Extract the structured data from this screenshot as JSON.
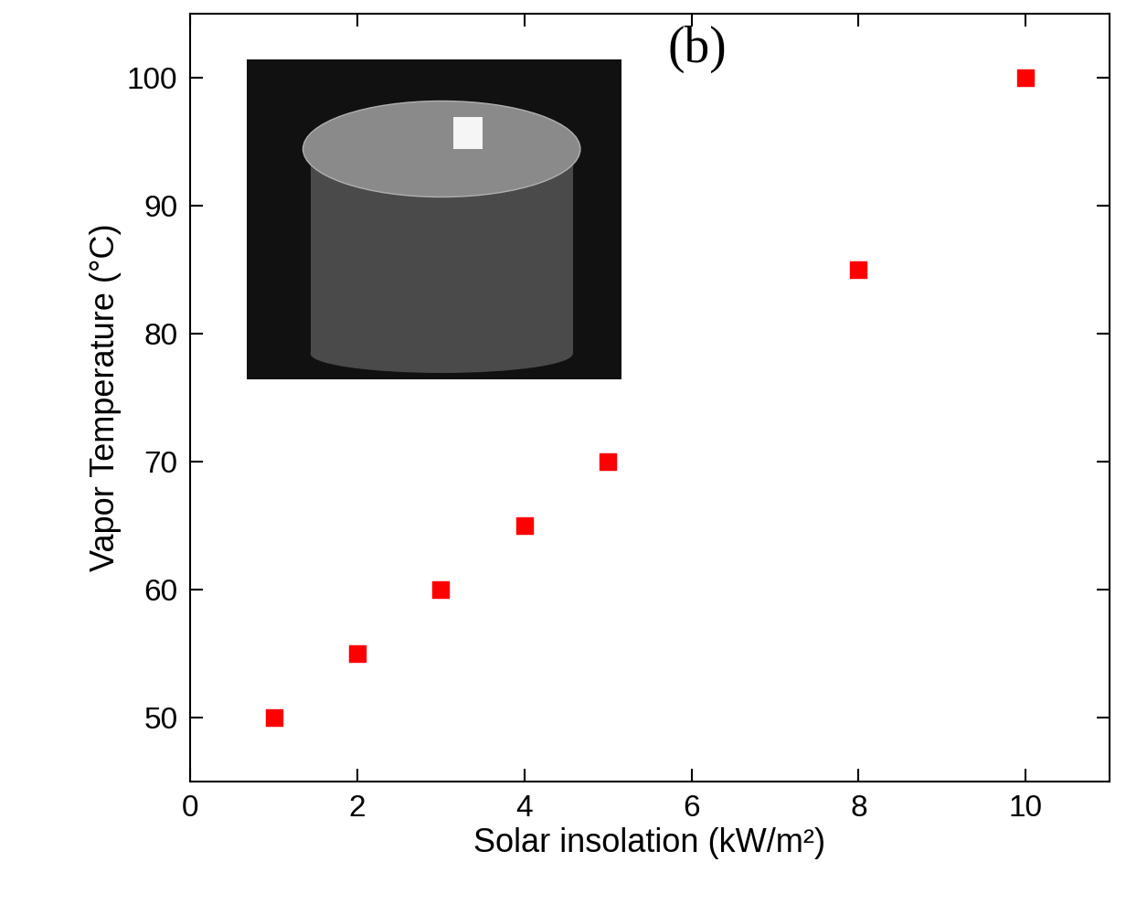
{
  "chart_data": {
    "type": "scatter",
    "annotation": "(b)",
    "x_label": "Solar insolation (kW/m²)",
    "y_label": "Vapor Temperature (°C)",
    "x": [
      1,
      2,
      3,
      4,
      5,
      8,
      10
    ],
    "values": [
      50,
      55,
      60,
      65,
      70,
      85,
      100
    ],
    "color": "#ff0000",
    "marker": "s",
    "xlim": [
      0,
      11
    ],
    "ylim": [
      45,
      105
    ],
    "xticks": [
      0,
      2,
      4,
      6,
      8,
      10
    ],
    "yticks": [
      50,
      60,
      70,
      80,
      90,
      100
    ]
  }
}
